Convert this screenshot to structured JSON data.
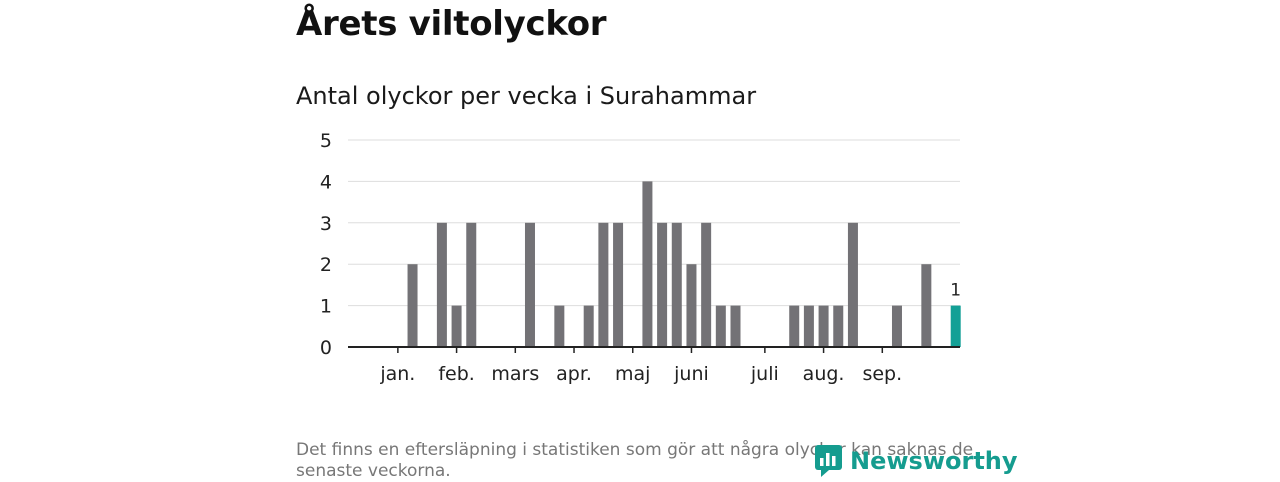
{
  "header": {
    "title": "Årets viltolyckor",
    "subtitle": "Antal olyckor per vecka i Surahammar"
  },
  "chart_data": {
    "type": "bar",
    "title": "Årets viltolyckor",
    "subtitle": "Antal olyckor per vecka i Surahammar",
    "xlabel": "",
    "ylabel": "",
    "ylim": [
      0,
      5
    ],
    "y_ticks": [
      0,
      1,
      2,
      3,
      4,
      5
    ],
    "grid": true,
    "weeks": [
      1,
      2,
      3,
      4,
      5,
      6,
      7,
      8,
      9,
      10,
      11,
      12,
      13,
      14,
      15,
      16,
      17,
      18,
      19,
      20,
      21,
      22,
      23,
      24,
      25,
      26,
      27,
      28,
      29,
      30,
      31,
      32,
      33,
      34,
      35,
      36,
      37,
      38,
      39,
      40,
      41
    ],
    "values": [
      0,
      0,
      0,
      2,
      0,
      3,
      1,
      3,
      0,
      0,
      0,
      3,
      0,
      1,
      0,
      1,
      3,
      3,
      0,
      4,
      3,
      3,
      2,
      3,
      1,
      1,
      0,
      0,
      0,
      1,
      1,
      1,
      1,
      3,
      0,
      0,
      1,
      0,
      2,
      0,
      1
    ],
    "highlight_index": 40,
    "highlight_label": "1",
    "month_labels": [
      {
        "label": "jan.",
        "week": 3
      },
      {
        "label": "feb.",
        "week": 7
      },
      {
        "label": "mars",
        "week": 11
      },
      {
        "label": "apr.",
        "week": 15
      },
      {
        "label": "maj",
        "week": 19
      },
      {
        "label": "juni",
        "week": 23
      },
      {
        "label": "juli",
        "week": 28
      },
      {
        "label": "aug.",
        "week": 32
      },
      {
        "label": "sep.",
        "week": 36
      }
    ],
    "colors": {
      "bar": "#737276",
      "highlight": "#13a096",
      "grid": "#dddddd",
      "axis": "#222222"
    }
  },
  "footer": {
    "note": "Det finns en eftersläpning i statistiken som gör att några olyckor kan saknas de senaste veckorna.",
    "logo_text": "Newsworthy"
  }
}
